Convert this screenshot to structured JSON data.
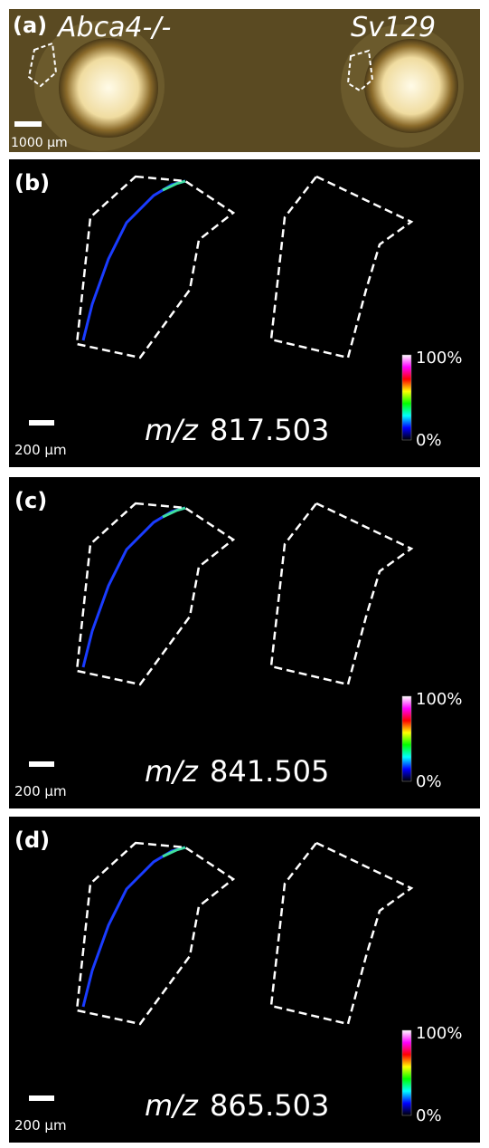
{
  "panels": [
    {
      "label": "(a)",
      "left_title": "Abca4-/-",
      "right_title": "Sv129",
      "scale_bar": "1000 µm"
    },
    {
      "label": "(b)",
      "mz_prefix": "m/z",
      "mz_value": "817.503",
      "scale_bar": "200 µm",
      "colorbar_max": "100%",
      "colorbar_min": "0%"
    },
    {
      "label": "(c)",
      "mz_prefix": "m/z",
      "mz_value": "841.505",
      "scale_bar": "200 µm",
      "colorbar_max": "100%",
      "colorbar_min": "0%"
    },
    {
      "label": "(d)",
      "mz_prefix": "m/z",
      "mz_value": "865.503",
      "scale_bar": "200 µm",
      "colorbar_max": "100%",
      "colorbar_min": "0%"
    }
  ]
}
